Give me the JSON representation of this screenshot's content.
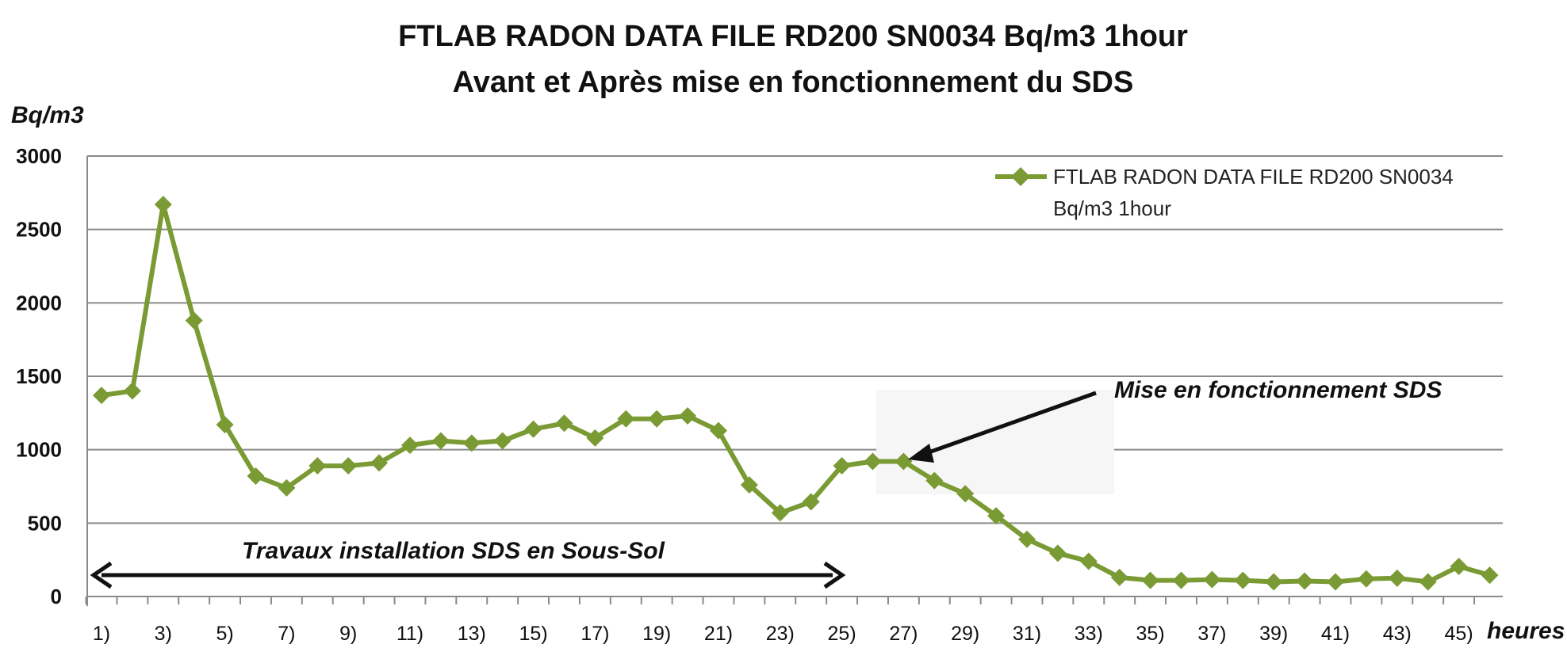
{
  "chart_data": {
    "type": "line",
    "title": "FTLAB RADON DATA FILE RD200 SN0034 Bq/m3 1hour",
    "subtitle": "Avant et Après mise en fonctionnement du SDS",
    "ylabel": "Bq/m3",
    "xlabel": "heures",
    "ylim": [
      0,
      3000
    ],
    "yticks": [
      "3000",
      "2500",
      "2000",
      "1500",
      "1000",
      "500",
      "0"
    ],
    "xtick_labels": [
      "1)",
      "3)",
      "5)",
      "7)",
      "9)",
      "11)",
      "13)",
      "15)",
      "17)",
      "19)",
      "21)",
      "23)",
      "25)",
      "27)",
      "29)",
      "31)",
      "33)",
      "35)",
      "37)",
      "39)",
      "41)",
      "43)",
      "45)"
    ],
    "grid": true,
    "legend_position": "top-right",
    "series": [
      {
        "name_line1": "FTLAB RADON DATA FILE RD200 SN0034",
        "name_line2": "Bq/m3 1hour",
        "color": "#7a9a34",
        "x": [
          1,
          2,
          3,
          4,
          5,
          6,
          7,
          8,
          9,
          10,
          11,
          12,
          13,
          14,
          15,
          16,
          17,
          18,
          19,
          20,
          21,
          22,
          23,
          24,
          25,
          26,
          27,
          28,
          29,
          30,
          31,
          32,
          33,
          34,
          35,
          36,
          37,
          38,
          39,
          40,
          41,
          42,
          43,
          44,
          45,
          46
        ],
        "values": [
          1370,
          1400,
          2670,
          1880,
          1170,
          820,
          740,
          890,
          890,
          910,
          1030,
          1060,
          1045,
          1060,
          1140,
          1180,
          1080,
          1210,
          1210,
          1230,
          1130,
          760,
          570,
          645,
          890,
          920,
          920,
          790,
          700,
          550,
          390,
          295,
          240,
          130,
          110,
          110,
          115,
          110,
          100,
          105,
          100,
          120,
          125,
          100,
          205,
          145
        ]
      }
    ],
    "annotations": {
      "mise_label": "Mise en fonctionnement SDS",
      "travaux_label": "Travaux installation SDS en Sous-Sol"
    }
  }
}
